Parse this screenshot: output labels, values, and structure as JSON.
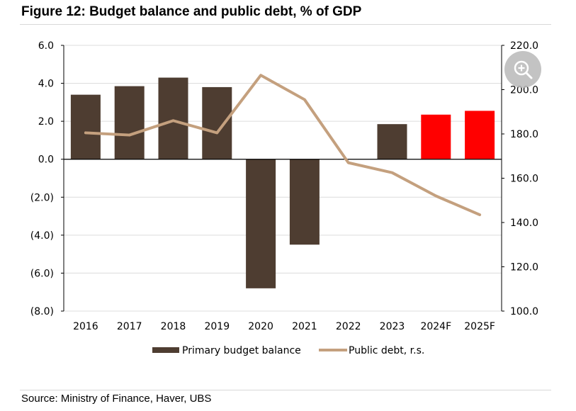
{
  "figure_title": "Figure 12: Budget balance and public debt, % of GDP",
  "source": "Source: Ministry of Finance, Haver, UBS",
  "colors": {
    "bar": "#4e3d31",
    "bar_forecast": "#ff0000",
    "line": "#c4a07e",
    "grid": "#dcdcdc"
  },
  "icons": {
    "zoom": "zoom-in-icon"
  },
  "chart_data": {
    "type": "bar",
    "categories": [
      "2016",
      "2017",
      "2018",
      "2019",
      "2020",
      "2021",
      "2022",
      "2023",
      "2024F",
      "2025F"
    ],
    "series": [
      {
        "name": "Primary budget balance",
        "type": "bar",
        "axis": "left",
        "values": [
          3.4,
          3.85,
          4.3,
          3.8,
          -6.8,
          -4.5,
          null,
          1.85,
          2.35,
          2.55
        ],
        "forecast": [
          false,
          false,
          false,
          false,
          false,
          false,
          false,
          false,
          true,
          true
        ]
      },
      {
        "name": "Public debt, r.s.",
        "type": "line",
        "axis": "right",
        "values": [
          180.5,
          179.5,
          186.0,
          180.5,
          206.5,
          195.5,
          167.0,
          162.5,
          152.0,
          143.5
        ]
      }
    ],
    "y_left": {
      "lim": [
        -8,
        6
      ],
      "ticks": [
        6,
        4,
        2,
        0,
        -2,
        -4,
        -6,
        -8
      ],
      "tick_labels": [
        "6.0",
        "4.0",
        "2.0",
        "0.0",
        "(2.0)",
        "(4.0)",
        "(6.0)",
        "(8.0)"
      ]
    },
    "y_right": {
      "lim": [
        100,
        220
      ],
      "ticks": [
        220,
        200,
        180,
        160,
        140,
        120,
        100
      ],
      "tick_labels": [
        "220.0",
        "200.0",
        "180.0",
        "160.0",
        "140.0",
        "120.0",
        "100.0"
      ]
    },
    "grid": true,
    "legend_position": "bottom"
  }
}
